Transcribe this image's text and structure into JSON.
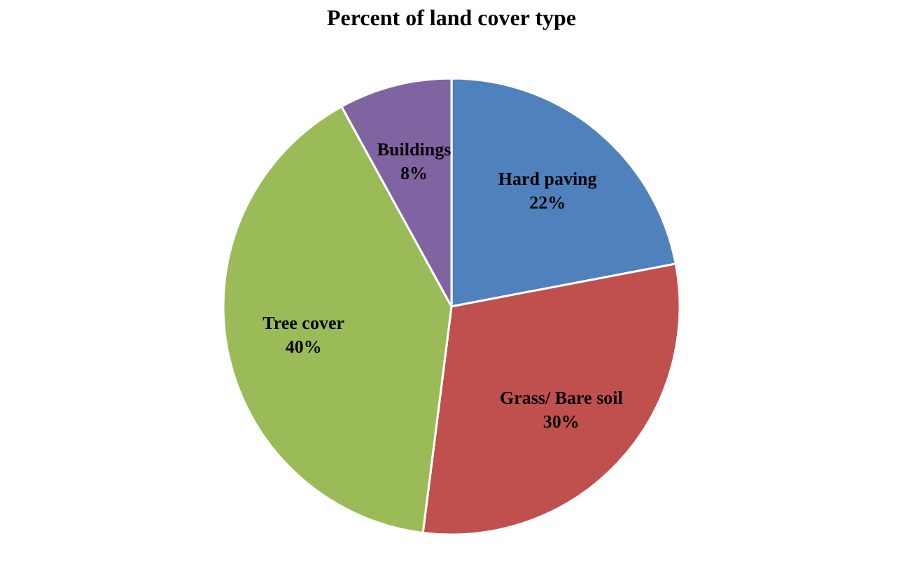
{
  "chart_data": {
    "type": "pie",
    "title": "Percent of land cover type",
    "categories": [
      "Hard paving",
      "Grass/ Bare soil",
      "Tree cover",
      "Buildings"
    ],
    "values": [
      22,
      30,
      40,
      8
    ],
    "colors": [
      "#4f81bd",
      "#c0504d",
      "#9bbb59",
      "#8064a2"
    ],
    "value_labels": [
      "22%",
      "30%",
      "40%",
      "8%"
    ],
    "legend": false
  }
}
